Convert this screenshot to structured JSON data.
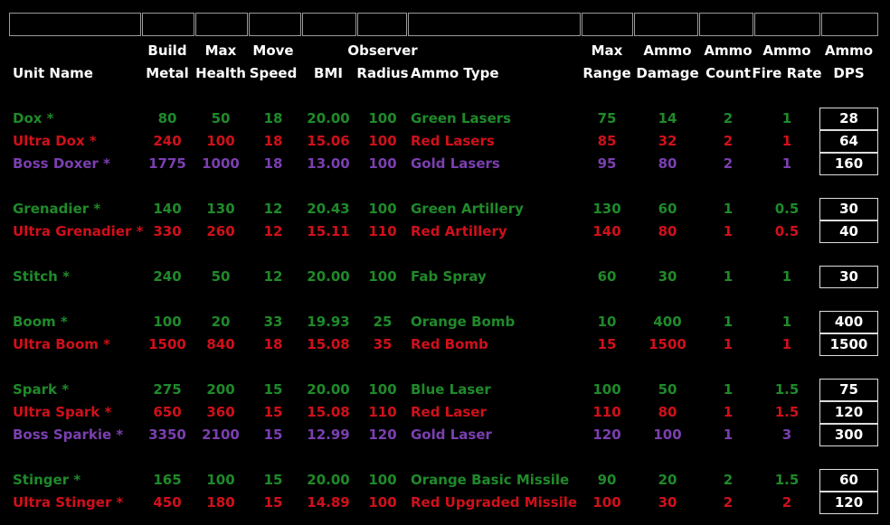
{
  "headers": {
    "unit_name": "Unit Name",
    "build_metal": [
      "Build",
      "Metal"
    ],
    "max_health": [
      "Max",
      "Health"
    ],
    "move_speed": [
      "Move",
      "Speed"
    ],
    "bmi": "BMI",
    "observer_radius": [
      "Observer",
      "Radius"
    ],
    "ammo_type": "Ammo Type",
    "max_range": [
      "Max",
      "Range"
    ],
    "ammo_damage": [
      "Ammo",
      "Damage"
    ],
    "ammo_count": [
      "Ammo",
      "Count"
    ],
    "ammo_fire_rate": [
      "Ammo",
      "Fire Rate"
    ],
    "ammo_dps": [
      "Ammo",
      "DPS"
    ]
  },
  "colors": {
    "standard": "#1f8a2a",
    "ultra": "#d0101a",
    "boss": "#7b3fb0"
  },
  "groups": [
    {
      "rows": [
        {
          "tier": "green",
          "name": "Dox *",
          "metal": "80",
          "health": "50",
          "speed": "18",
          "bmi": "20.00",
          "radius": "100",
          "ammo": "Green Lasers",
          "range": "75",
          "damage": "14",
          "count": "2",
          "rate": "1",
          "dps": "28"
        },
        {
          "tier": "red",
          "name": "Ultra Dox *",
          "metal": "240",
          "health": "100",
          "speed": "18",
          "bmi": "15.06",
          "radius": "100",
          "ammo": "Red Lasers",
          "range": "85",
          "damage": "32",
          "count": "2",
          "rate": "1",
          "dps": "64"
        },
        {
          "tier": "purple",
          "name": "Boss Doxer *",
          "metal": "1775",
          "health": "1000",
          "speed": "18",
          "bmi": "13.00",
          "radius": "100",
          "ammo": "Gold Lasers",
          "range": "95",
          "damage": "80",
          "count": "2",
          "rate": "1",
          "dps": "160"
        }
      ]
    },
    {
      "rows": [
        {
          "tier": "green",
          "name": "Grenadier *",
          "metal": "140",
          "health": "130",
          "speed": "12",
          "bmi": "20.43",
          "radius": "100",
          "ammo": "Green Artillery",
          "range": "130",
          "damage": "60",
          "count": "1",
          "rate": "0.5",
          "dps": "30"
        },
        {
          "tier": "red",
          "name": "Ultra Grenadier *",
          "metal": "330",
          "health": "260",
          "speed": "12",
          "bmi": "15.11",
          "radius": "110",
          "ammo": "Red Artillery",
          "range": "140",
          "damage": "80",
          "count": "1",
          "rate": "0.5",
          "dps": "40"
        }
      ]
    },
    {
      "rows": [
        {
          "tier": "green",
          "name": "Stitch *",
          "metal": "240",
          "health": "50",
          "speed": "12",
          "bmi": "20.00",
          "radius": "100",
          "ammo": "Fab Spray",
          "range": "60",
          "damage": "30",
          "count": "1",
          "rate": "1",
          "dps": "30"
        }
      ]
    },
    {
      "rows": [
        {
          "tier": "green",
          "name": "Boom *",
          "metal": "100",
          "health": "20",
          "speed": "33",
          "bmi": "19.93",
          "radius": "25",
          "ammo": "Orange Bomb",
          "range": "10",
          "damage": "400",
          "count": "1",
          "rate": "1",
          "dps": "400"
        },
        {
          "tier": "red",
          "name": "Ultra Boom *",
          "metal": "1500",
          "health": "840",
          "speed": "18",
          "bmi": "15.08",
          "radius": "35",
          "ammo": "Red Bomb",
          "range": "15",
          "damage": "1500",
          "count": "1",
          "rate": "1",
          "dps": "1500"
        }
      ]
    },
    {
      "rows": [
        {
          "tier": "green",
          "name": "Spark *",
          "metal": "275",
          "health": "200",
          "speed": "15",
          "bmi": "20.00",
          "radius": "100",
          "ammo": "Blue Laser",
          "range": "100",
          "damage": "50",
          "count": "1",
          "rate": "1.5",
          "dps": "75"
        },
        {
          "tier": "red",
          "name": "Ultra Spark *",
          "metal": "650",
          "health": "360",
          "speed": "15",
          "bmi": "15.08",
          "radius": "110",
          "ammo": "Red Laser",
          "range": "110",
          "damage": "80",
          "count": "1",
          "rate": "1.5",
          "dps": "120"
        },
        {
          "tier": "purple",
          "name": "Boss Sparkie *",
          "metal": "3350",
          "health": "2100",
          "speed": "15",
          "bmi": "12.99",
          "radius": "120",
          "ammo": "Gold Laser",
          "range": "120",
          "damage": "100",
          "count": "1",
          "rate": "3",
          "dps": "300"
        }
      ]
    },
    {
      "rows": [
        {
          "tier": "green",
          "name": "Stinger *",
          "metal": "165",
          "health": "100",
          "speed": "15",
          "bmi": "20.00",
          "radius": "100",
          "ammo": "Orange Basic Missile",
          "range": "90",
          "damage": "20",
          "count": "2",
          "rate": "1.5",
          "dps": "60"
        },
        {
          "tier": "red",
          "name": "Ultra Stinger *",
          "metal": "450",
          "health": "180",
          "speed": "15",
          "bmi": "14.89",
          "radius": "100",
          "ammo": "Red Upgraded Missile",
          "range": "100",
          "damage": "30",
          "count": "2",
          "rate": "2",
          "dps": "120"
        }
      ]
    }
  ]
}
